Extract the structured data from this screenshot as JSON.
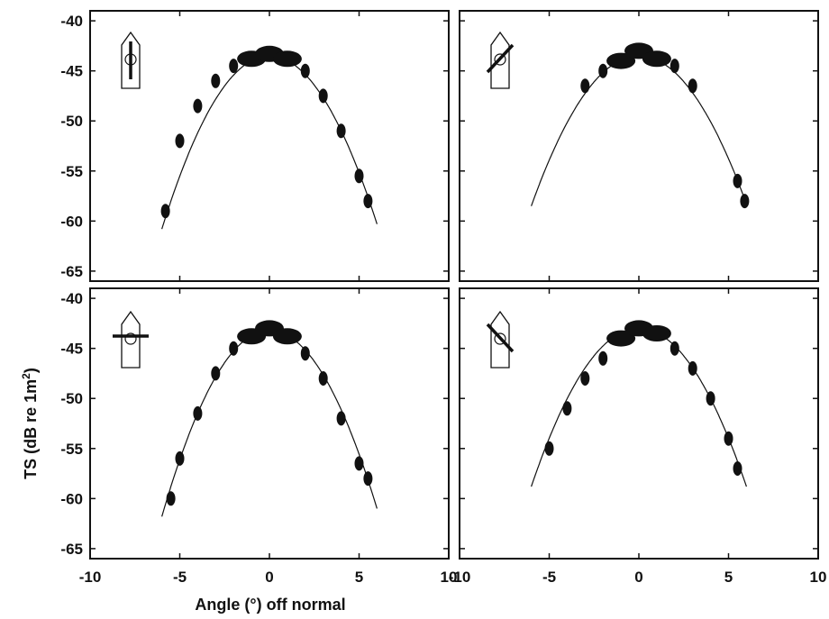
{
  "figure": {
    "ylabel_text": "TS (dB re 1m",
    "ylabel_sup": "2",
    "ylabel_close": ")",
    "xlabel": "Angle (°) off normal",
    "xticks": [
      "-10",
      "-5",
      "0",
      "5",
      "10"
    ],
    "yticks": [
      "-40",
      "-45",
      "-50",
      "-55",
      "-60",
      "-65"
    ]
  },
  "chart_data": [
    {
      "type": "line",
      "panel": "top-left",
      "xlim": [
        -10,
        10
      ],
      "ylim": [
        -66,
        -39
      ],
      "x_ticks": [
        -10,
        -5,
        0,
        5,
        10
      ],
      "y_ticks": [
        -40,
        -45,
        -50,
        -55,
        -60,
        -65
      ],
      "xtick_labels_shown": false,
      "ytick_labels_shown": true,
      "fit_curve": {
        "x_range": [
          -6,
          6
        ],
        "peak_x": 0,
        "peak_y": -43.5,
        "end_y_left": -60.8,
        "end_y_right": -60.3
      },
      "inset_icon": "vessel with transducer beam along the keel (0°)",
      "series": [
        {
          "x": [
            -5.8,
            -5.0,
            -4.0,
            -3.0,
            -2.0,
            -1.0,
            0,
            1.0,
            2.0,
            3.0,
            4.0,
            5.0,
            5.5
          ],
          "y": [
            -59.0,
            -52.0,
            -48.5,
            -46.0,
            -44.5,
            -43.8,
            -43.3,
            -43.8,
            -45.0,
            -47.5,
            -51.0,
            -55.5,
            -58.0
          ]
        }
      ]
    },
    {
      "type": "line",
      "panel": "top-right",
      "xlim": [
        -10,
        10
      ],
      "ylim": [
        -66,
        -39
      ],
      "x_ticks": [
        -10,
        -5,
        0,
        5,
        10
      ],
      "y_ticks": [
        -40,
        -45,
        -50,
        -55,
        -60,
        -65
      ],
      "xtick_labels_shown": false,
      "ytick_labels_shown": false,
      "fit_curve": {
        "x_range": [
          -6,
          6
        ],
        "peak_x": 0,
        "peak_y": -43.5,
        "end_y_left": -58.5,
        "end_y_right": -58.3
      },
      "inset_icon": "vessel with transducer beam rotated 45°",
      "series": [
        {
          "x": [
            -3.0,
            -2.0,
            -1.0,
            0,
            1.0,
            2.0,
            3.0,
            5.5,
            5.9
          ],
          "y": [
            -46.5,
            -45.0,
            -44.0,
            -43.0,
            -43.8,
            -44.5,
            -46.5,
            -56.0,
            -58.0
          ]
        }
      ]
    },
    {
      "type": "line",
      "panel": "bottom-left",
      "xlim": [
        -10,
        10
      ],
      "ylim": [
        -66,
        -39
      ],
      "x_ticks": [
        -10,
        -5,
        0,
        5,
        10
      ],
      "y_ticks": [
        -40,
        -45,
        -50,
        -55,
        -60,
        -65
      ],
      "xtick_labels_shown": true,
      "ytick_labels_shown": true,
      "fit_curve": {
        "x_range": [
          -6,
          6
        ],
        "peak_x": 0,
        "peak_y": -43.2,
        "end_y_left": -61.8,
        "end_y_right": -61.0
      },
      "inset_icon": "vessel with transducer beam across the keel (90°)",
      "series": [
        {
          "x": [
            -5.5,
            -5.0,
            -4.0,
            -3.0,
            -2.0,
            -1.0,
            0,
            1.0,
            2.0,
            3.0,
            4.0,
            5.0,
            5.5
          ],
          "y": [
            -60.0,
            -56.0,
            -51.5,
            -47.5,
            -45.0,
            -43.8,
            -43.0,
            -43.8,
            -45.5,
            -48.0,
            -52.0,
            -56.5,
            -58.0
          ]
        }
      ]
    },
    {
      "type": "line",
      "panel": "bottom-right",
      "xlim": [
        -10,
        10
      ],
      "ylim": [
        -66,
        -39
      ],
      "x_ticks": [
        -10,
        -5,
        0,
        5,
        10
      ],
      "y_ticks": [
        -40,
        -45,
        -50,
        -55,
        -60,
        -65
      ],
      "xtick_labels_shown": true,
      "ytick_labels_shown": false,
      "fit_curve": {
        "x_range": [
          -6,
          6
        ],
        "peak_x": 0,
        "peak_y": -43.0,
        "end_y_left": -58.8,
        "end_y_right": -58.8
      },
      "inset_icon": "vessel with transducer beam rotated -45°",
      "series": [
        {
          "x": [
            -5.0,
            -4.0,
            -3.0,
            -2.0,
            -1.0,
            0,
            1.0,
            2.0,
            3.0,
            4.0,
            5.0,
            5.5
          ],
          "y": [
            -55.0,
            -51.0,
            -48.0,
            -46.0,
            -44.0,
            -43.0,
            -43.5,
            -45.0,
            -47.0,
            -50.0,
            -54.0,
            -57.0
          ]
        }
      ]
    }
  ]
}
